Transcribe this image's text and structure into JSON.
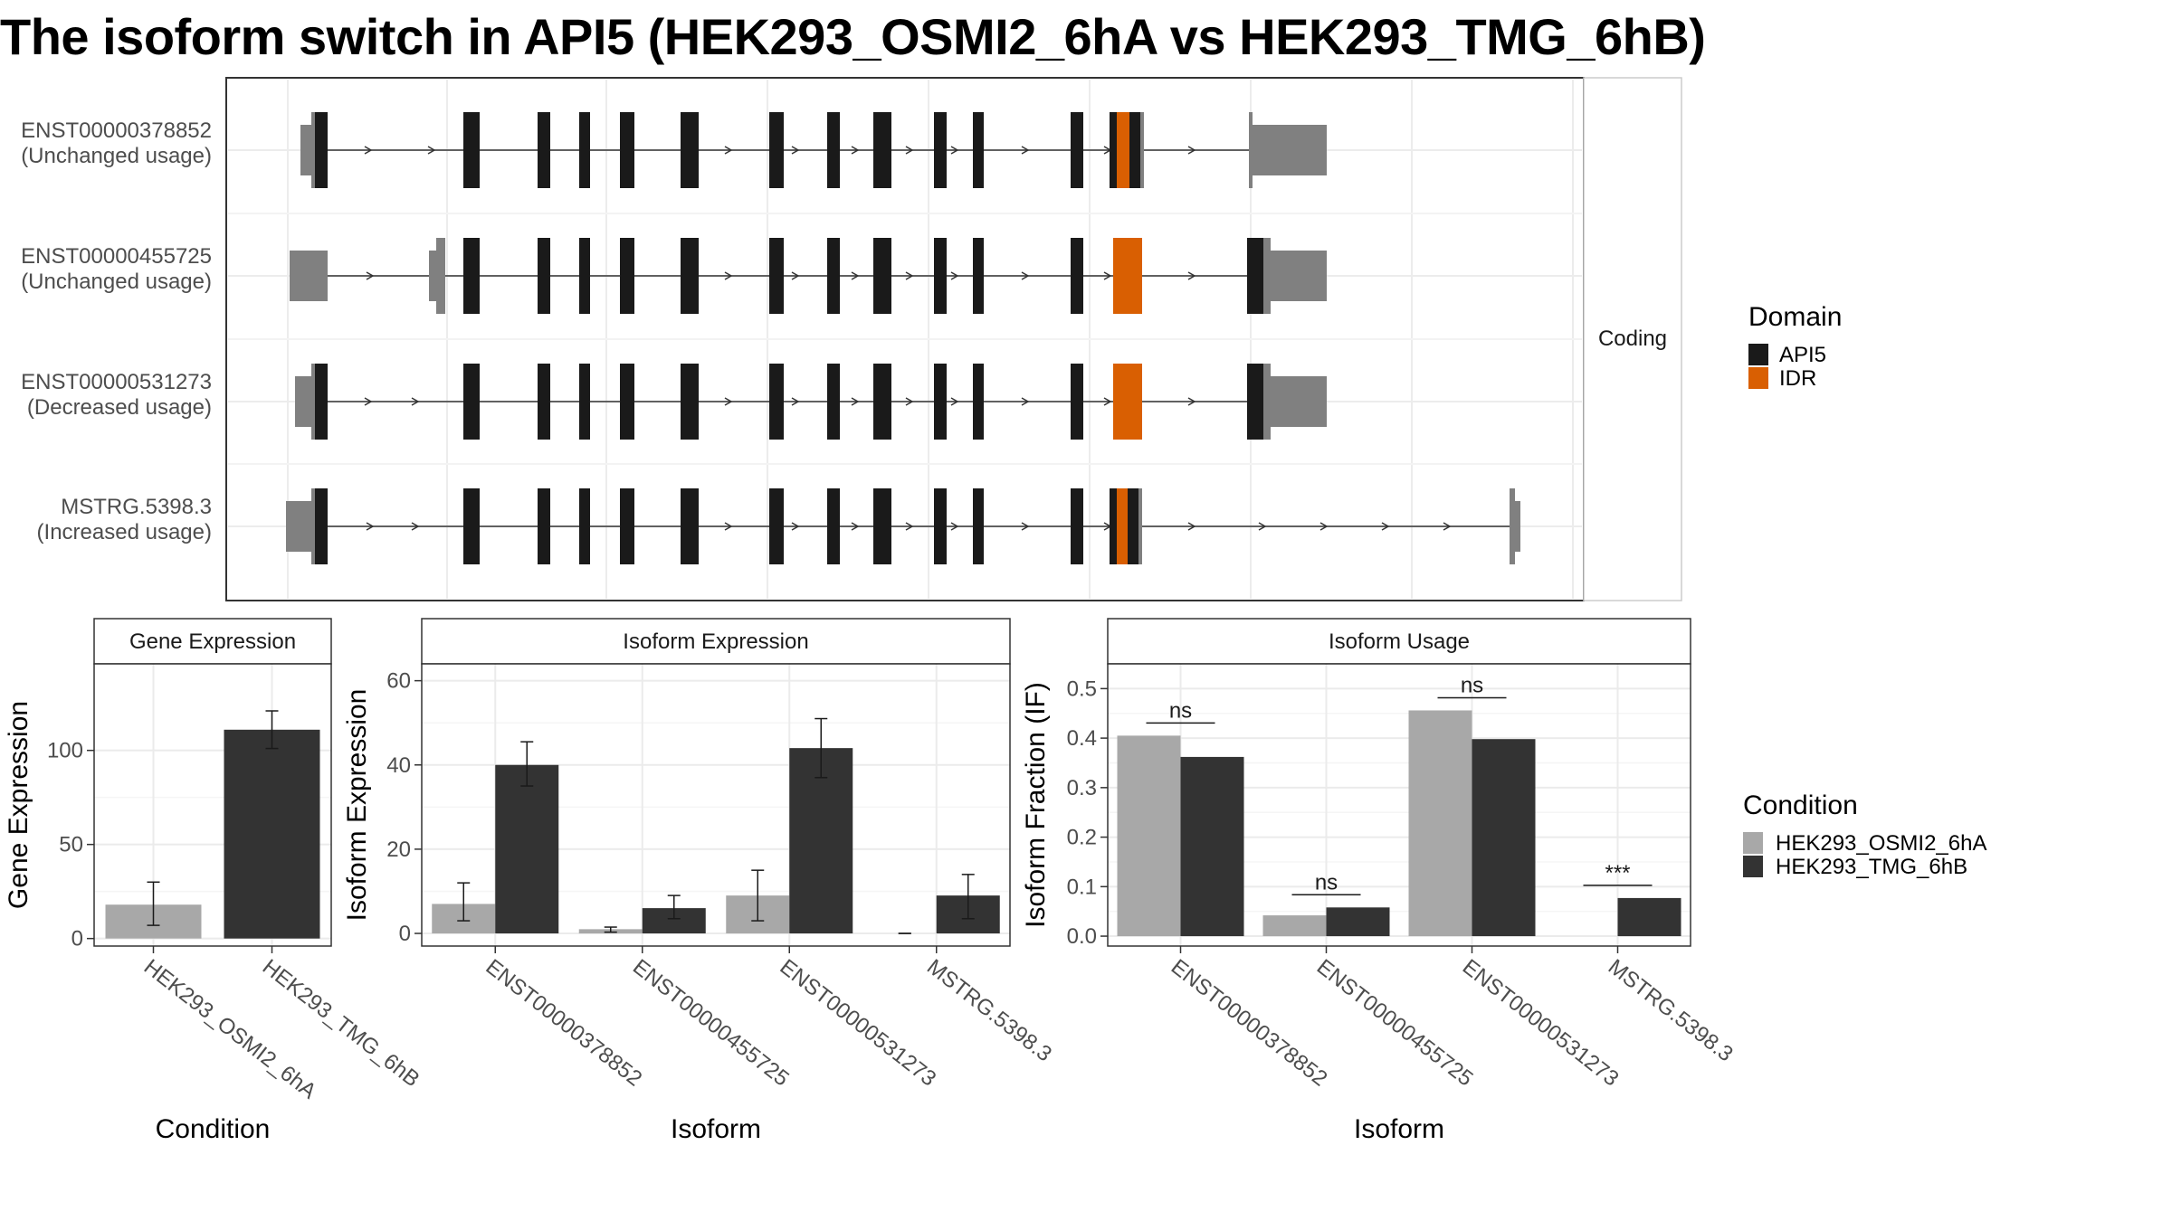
{
  "title": "The isoform switch in API5 (HEK293_OSMI2_6hA vs HEK293_TMG_6hB)",
  "colors": {
    "cond_a": "#a8a8a8",
    "cond_b": "#333333",
    "api5": "#1a1a1a",
    "idr": "#d95f02",
    "utr": "#808080",
    "strip_bg": "#ffffff"
  },
  "chart_data": [
    {
      "type": "gene-structure",
      "facet_label": "Coding",
      "rows": [
        {
          "id": "ENST00000378852",
          "usage": "(Unchanged usage)"
        },
        {
          "id": "ENST00000455725",
          "usage": "(Unchanged usage)"
        },
        {
          "id": "ENST00000531273",
          "usage": "(Decreased usage)"
        },
        {
          "id": "MSTRG.5398.3",
          "usage": "(Increased usage)"
        }
      ],
      "legend": {
        "title": "Domain",
        "items": [
          {
            "label": "API5",
            "color": "#1a1a1a"
          },
          {
            "label": "IDR",
            "color": "#d95f02"
          }
        ]
      }
    },
    {
      "type": "bar",
      "strip": "Gene Expression",
      "xlabel": "Condition",
      "ylabel": "Gene Expression",
      "categories": [
        "HEK293_OSMI2_6hA",
        "HEK293_TMG_6hB"
      ],
      "values": [
        18,
        111
      ],
      "err_low": [
        7,
        101
      ],
      "err_high": [
        30,
        121
      ],
      "yticks": [
        0,
        50,
        100
      ],
      "ylim": [
        -4,
        146
      ]
    },
    {
      "type": "bar",
      "strip": "Isoform Expression",
      "xlabel": "Isoform",
      "ylabel": "Isoform Expression",
      "categories": [
        "ENST00000378852",
        "ENST00000455725",
        "ENST00000531273",
        "MSTRG.5398.3"
      ],
      "series": [
        {
          "name": "HEK293_OSMI2_6hA",
          "values": [
            7,
            1,
            9,
            0
          ],
          "err_low": [
            3,
            0.3,
            3,
            0
          ],
          "err_high": [
            12,
            1.5,
            15,
            0
          ]
        },
        {
          "name": "HEK293_TMG_6hB",
          "values": [
            40,
            6,
            44,
            9
          ],
          "err_low": [
            35,
            3.5,
            37,
            3.5
          ],
          "err_high": [
            45.5,
            9,
            51,
            14
          ]
        }
      ],
      "yticks": [
        0,
        20,
        40,
        60
      ],
      "ylim": [
        -3,
        64
      ]
    },
    {
      "type": "bar",
      "strip": "Isoform Usage",
      "xlabel": "Isoform",
      "ylabel": "Isoform Fraction (IF)",
      "categories": [
        "ENST00000378852",
        "ENST00000455725",
        "ENST00000531273",
        "MSTRG.5398.3"
      ],
      "series": [
        {
          "name": "HEK293_OSMI2_6hA",
          "values": [
            0.405,
            0.042,
            0.456,
            0.0
          ]
        },
        {
          "name": "HEK293_TMG_6hB",
          "values": [
            0.362,
            0.058,
            0.398,
            0.077
          ]
        }
      ],
      "significance": [
        "ns",
        "ns",
        "ns",
        "***"
      ],
      "yticks": [
        0.0,
        0.1,
        0.2,
        0.3,
        0.4,
        0.5
      ],
      "ylim": [
        -0.02,
        0.55
      ]
    }
  ],
  "condition_legend": {
    "title": "Condition",
    "items": [
      {
        "label": "HEK293_OSMI2_6hA",
        "color": "#a8a8a8"
      },
      {
        "label": "HEK293_TMG_6hB",
        "color": "#333333"
      }
    ]
  }
}
